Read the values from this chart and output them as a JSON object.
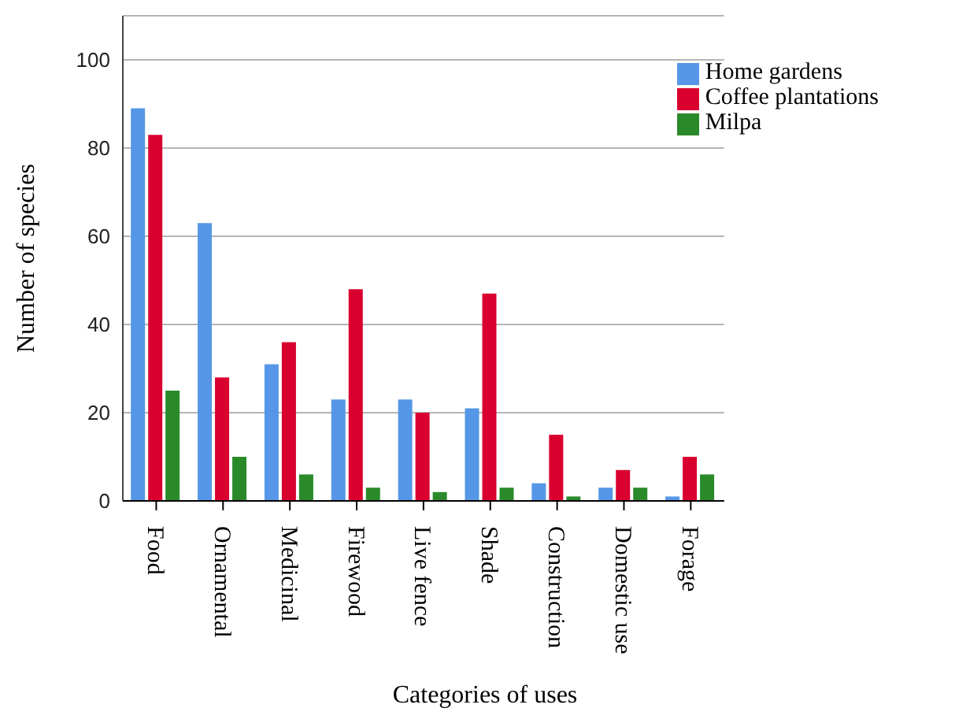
{
  "chart_data": {
    "type": "bar",
    "xlabel": "Categories of uses",
    "ylabel": "Number of species",
    "categories": [
      "Food",
      "Ornamental",
      "Medicinal",
      "Firewood",
      "Live fence",
      "Shade",
      "Construction",
      "Domestic use",
      "Forage"
    ],
    "series": [
      {
        "name": "Home gardens",
        "color": "#5597e6",
        "values": [
          89,
          63,
          31,
          23,
          23,
          21,
          4,
          3,
          1
        ]
      },
      {
        "name": "Coffee plantations",
        "color": "#d9002f",
        "values": [
          83,
          28,
          36,
          48,
          20,
          47,
          15,
          7,
          10
        ]
      },
      {
        "name": "Milpa",
        "color": "#2a8a2a",
        "values": [
          25,
          10,
          6,
          3,
          2,
          3,
          1,
          3,
          6
        ]
      }
    ],
    "ylim": [
      0,
      110
    ],
    "yticks": [
      0,
      20,
      40,
      60,
      80,
      100
    ],
    "grid": "y",
    "legend": "top right"
  }
}
